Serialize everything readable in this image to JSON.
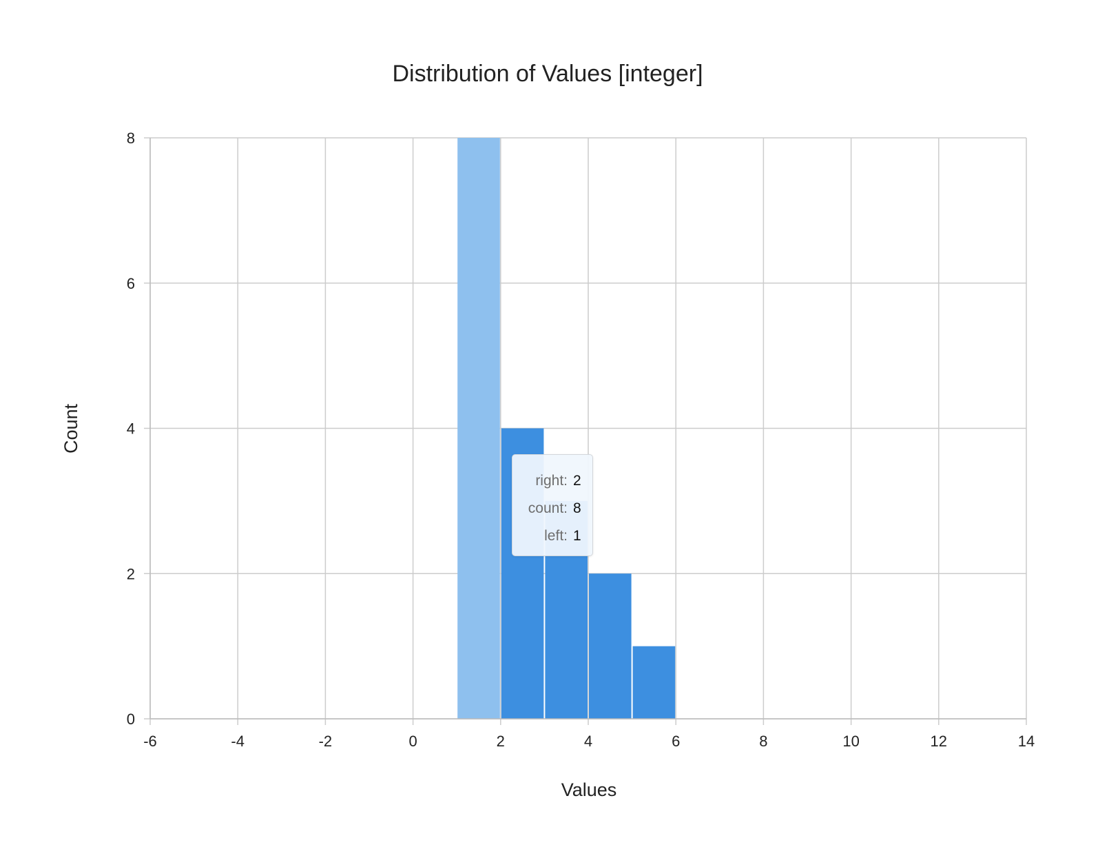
{
  "chart_data": {
    "type": "bar",
    "title": "Distribution of Values [integer]",
    "xlabel": "Values",
    "ylabel": "Count",
    "xlim": [
      -6,
      14
    ],
    "ylim": [
      0,
      8
    ],
    "x_ticks": [
      "-6",
      "-4",
      "-2",
      "0",
      "2",
      "4",
      "6",
      "8",
      "10",
      "12",
      "14"
    ],
    "y_ticks": [
      "0",
      "2",
      "4",
      "6",
      "8"
    ],
    "grid": true,
    "bins": [
      {
        "left": 1,
        "right": 2,
        "count": 8,
        "highlighted": true
      },
      {
        "left": 2,
        "right": 3,
        "count": 4
      },
      {
        "left": 3,
        "right": 4,
        "count": 3
      },
      {
        "left": 4,
        "right": 5,
        "count": 2
      },
      {
        "left": 5,
        "right": 6,
        "count": 1
      }
    ],
    "colors": {
      "bar": "#3d8fe0",
      "highlight": "#8ec0ee",
      "grid": "#cccccc"
    }
  },
  "tooltip": {
    "rows": [
      {
        "key": "right:",
        "value": "2"
      },
      {
        "key": "count:",
        "value": "8"
      },
      {
        "key": "left:",
        "value": "1"
      }
    ]
  }
}
